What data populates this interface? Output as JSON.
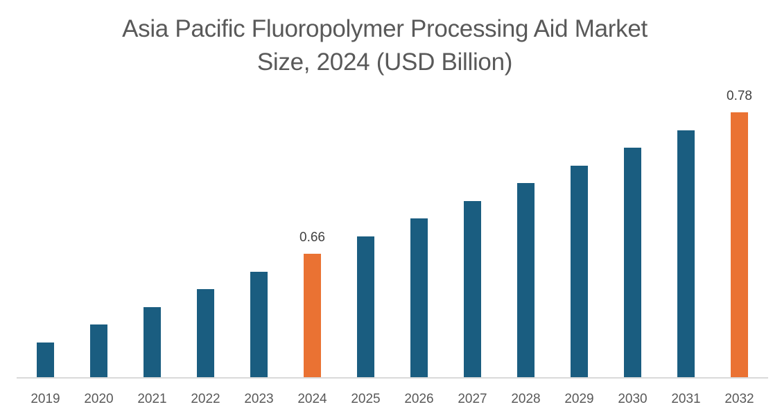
{
  "chart_data": {
    "type": "bar",
    "title": "Asia Pacific Fluoropolymer Processing Aid Market Size, 2024 (USD Billion)",
    "title_lines": [
      "Asia Pacific Fluoropolymer Processing Aid Market",
      "Size, 2024 (USD Billion)"
    ],
    "xlabel": "",
    "ylabel": "",
    "categories": [
      "2019",
      "2020",
      "2021",
      "2022",
      "2023",
      "2024",
      "2025",
      "2026",
      "2027",
      "2028",
      "2029",
      "2030",
      "2031",
      "2032"
    ],
    "values": [
      0.585,
      0.6,
      0.615,
      0.63,
      0.645,
      0.66,
      0.675,
      0.69,
      0.705,
      0.72,
      0.735,
      0.75,
      0.765,
      0.78
    ],
    "data_labels": {
      "2024": "0.66",
      "2032": "0.78"
    },
    "highlight_categories": [
      "2024",
      "2032"
    ],
    "grid": false,
    "y_axis_visible": false,
    "legend": null,
    "colors": {
      "default": "#1a5d80",
      "highlight": "#ea7233",
      "baseline": "#d9d9d9",
      "text": "#595959"
    }
  }
}
